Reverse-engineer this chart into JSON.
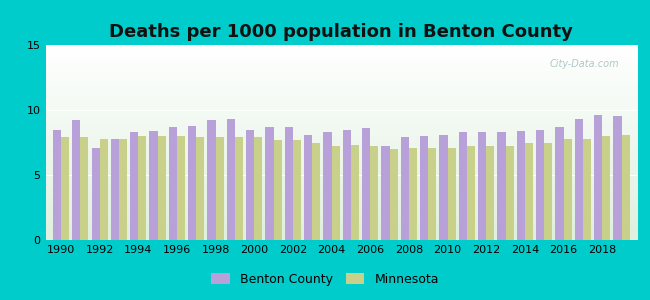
{
  "title": "Deaths per 1000 population in Benton County",
  "years": [
    1990,
    1991,
    1992,
    1993,
    1994,
    1995,
    1996,
    1997,
    1998,
    1999,
    2000,
    2001,
    2002,
    2003,
    2004,
    2005,
    2006,
    2007,
    2008,
    2009,
    2010,
    2011,
    2012,
    2013,
    2014,
    2015,
    2016,
    2017,
    2018,
    2019
  ],
  "benton_county": [
    8.5,
    9.2,
    7.1,
    7.8,
    8.3,
    8.4,
    8.7,
    8.8,
    9.2,
    9.3,
    8.5,
    8.7,
    8.7,
    8.1,
    8.3,
    8.5,
    8.6,
    7.2,
    7.9,
    8.0,
    8.1,
    8.3,
    8.3,
    8.3,
    8.4,
    8.5,
    8.7,
    9.3,
    9.6,
    9.5
  ],
  "minnesota": [
    7.9,
    7.9,
    7.8,
    7.8,
    8.0,
    8.0,
    8.0,
    7.9,
    7.9,
    7.9,
    7.9,
    7.7,
    7.7,
    7.5,
    7.2,
    7.3,
    7.2,
    7.0,
    7.1,
    7.1,
    7.1,
    7.2,
    7.2,
    7.2,
    7.5,
    7.5,
    7.8,
    7.8,
    8.0,
    8.1
  ],
  "benton_color": "#b8a0d8",
  "minnesota_color": "#c8d08a",
  "bg_outer": "#00cccc",
  "ylim": [
    0,
    15
  ],
  "yticks": [
    0,
    5,
    10,
    15
  ],
  "title_fontsize": 13,
  "bar_width": 0.42,
  "legend_labels": [
    "Benton County",
    "Minnesota"
  ]
}
